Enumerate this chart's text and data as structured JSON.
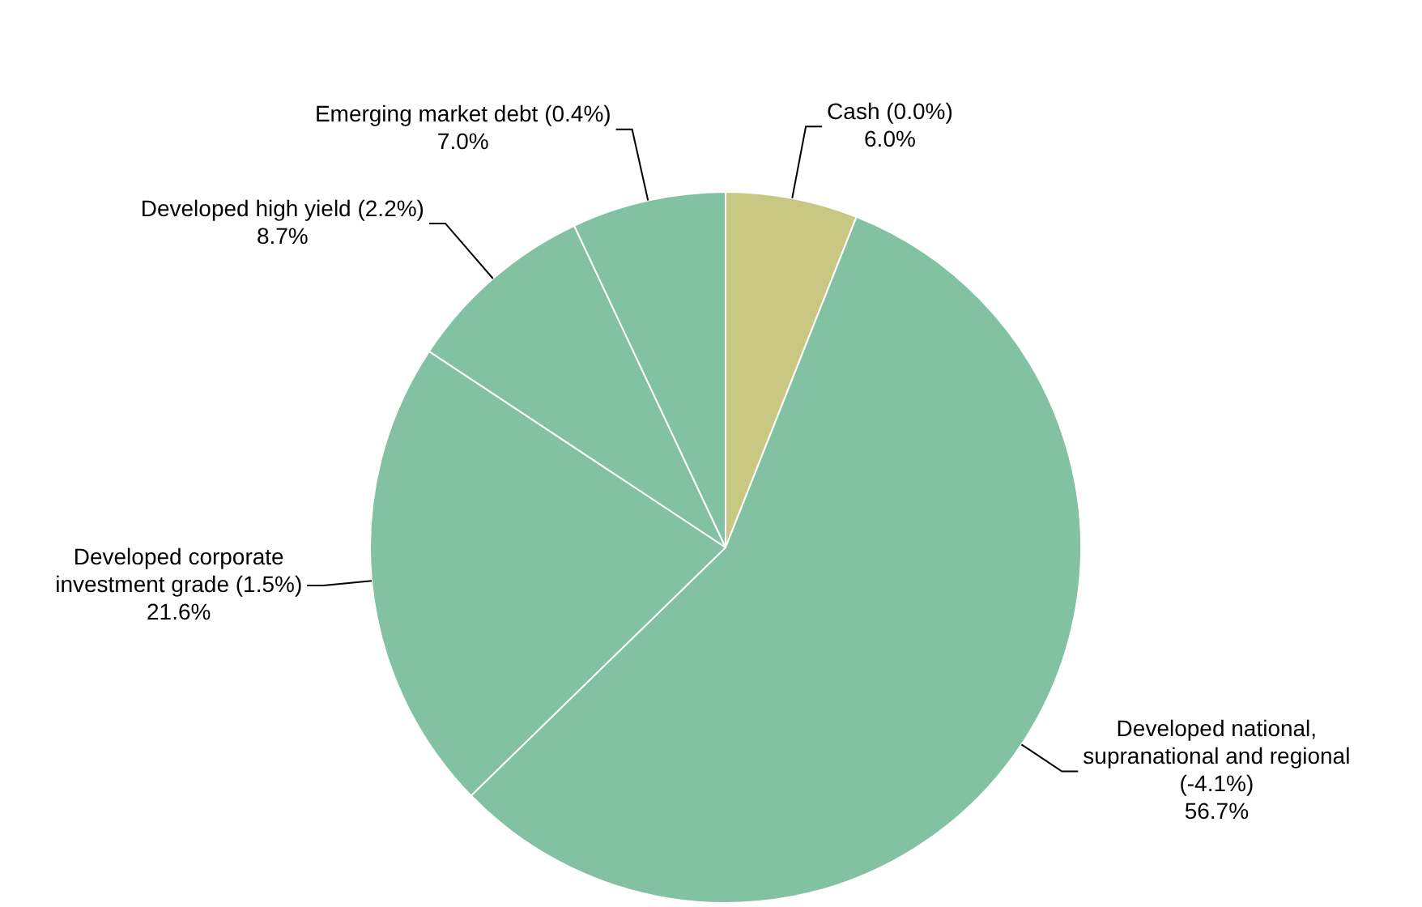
{
  "chart_data": {
    "type": "pie",
    "categories": [
      "Cash (0.0%)",
      "Developed national, supranational and regional (-4.1%)",
      "Developed corporate investment grade (1.5%)",
      "Developed high yield (2.2%)",
      "Emerging market debt (0.4%)"
    ],
    "values": [
      6.0,
      56.7,
      21.6,
      8.7,
      7.0
    ],
    "value_labels": [
      "6.0%",
      "56.7%",
      "21.6%",
      "8.7%",
      "7.0%"
    ],
    "colors": [
      "#c8c882",
      "#82c2a3",
      "#82c2a3",
      "#82c2a3",
      "#82c2a3"
    ],
    "legend": false
  }
}
